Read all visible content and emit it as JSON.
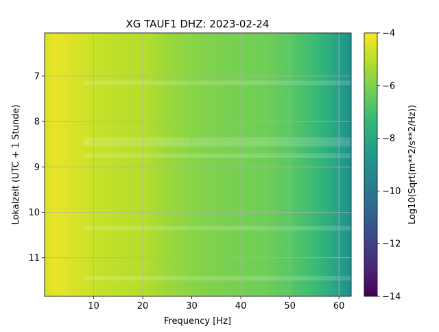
{
  "chart_data": {
    "type": "heatmap",
    "title": "XG TAUF1  DHZ: 2023-02-24",
    "xlabel": "Frequency [Hz]",
    "ylabel": "Lokalzeit (UTC + 1 Stunde)",
    "colorbar_label": "Log10(Sqrt(m**2/s**2/Hz))",
    "colormap": "viridis",
    "xlim": [
      0,
      62.5
    ],
    "ylim": [
      11.85,
      6.05
    ],
    "y_inverted": true,
    "x_ticks": [
      "10",
      "20",
      "30",
      "40",
      "50",
      "60"
    ],
    "y_ticks": [
      "7",
      "8",
      "9",
      "10",
      "11"
    ],
    "clim": [
      -14,
      -4
    ],
    "colorbar_ticks": [
      "−4",
      "−6",
      "−8",
      "−10",
      "−12",
      "−14"
    ],
    "grid": true,
    "spectrum_profile": [
      {
        "frequency_hz": 0.5,
        "level": -4.6
      },
      {
        "frequency_hz": 2,
        "level": -4.3
      },
      {
        "frequency_hz": 5,
        "level": -4.5
      },
      {
        "frequency_hz": 10,
        "level": -4.8
      },
      {
        "frequency_hz": 15,
        "level": -5.0
      },
      {
        "frequency_hz": 20,
        "level": -5.1
      },
      {
        "frequency_hz": 25,
        "level": -5.5
      },
      {
        "frequency_hz": 30,
        "level": -5.8
      },
      {
        "frequency_hz": 35,
        "level": -6.0
      },
      {
        "frequency_hz": 40,
        "level": -6.1
      },
      {
        "frequency_hz": 45,
        "level": -6.2
      },
      {
        "frequency_hz": 50,
        "level": -6.6
      },
      {
        "frequency_hz": 55,
        "level": -7.2
      },
      {
        "frequency_hz": 58,
        "level": -7.8
      },
      {
        "frequency_hz": 61,
        "level": -8.6
      },
      {
        "frequency_hz": 62.5,
        "level": -9.0
      }
    ],
    "quiet_bands_hours": [
      [
        7.1,
        7.2
      ],
      [
        8.35,
        8.55
      ],
      [
        8.7,
        8.8
      ],
      [
        10.3,
        10.4
      ],
      [
        11.4,
        11.5
      ]
    ]
  }
}
